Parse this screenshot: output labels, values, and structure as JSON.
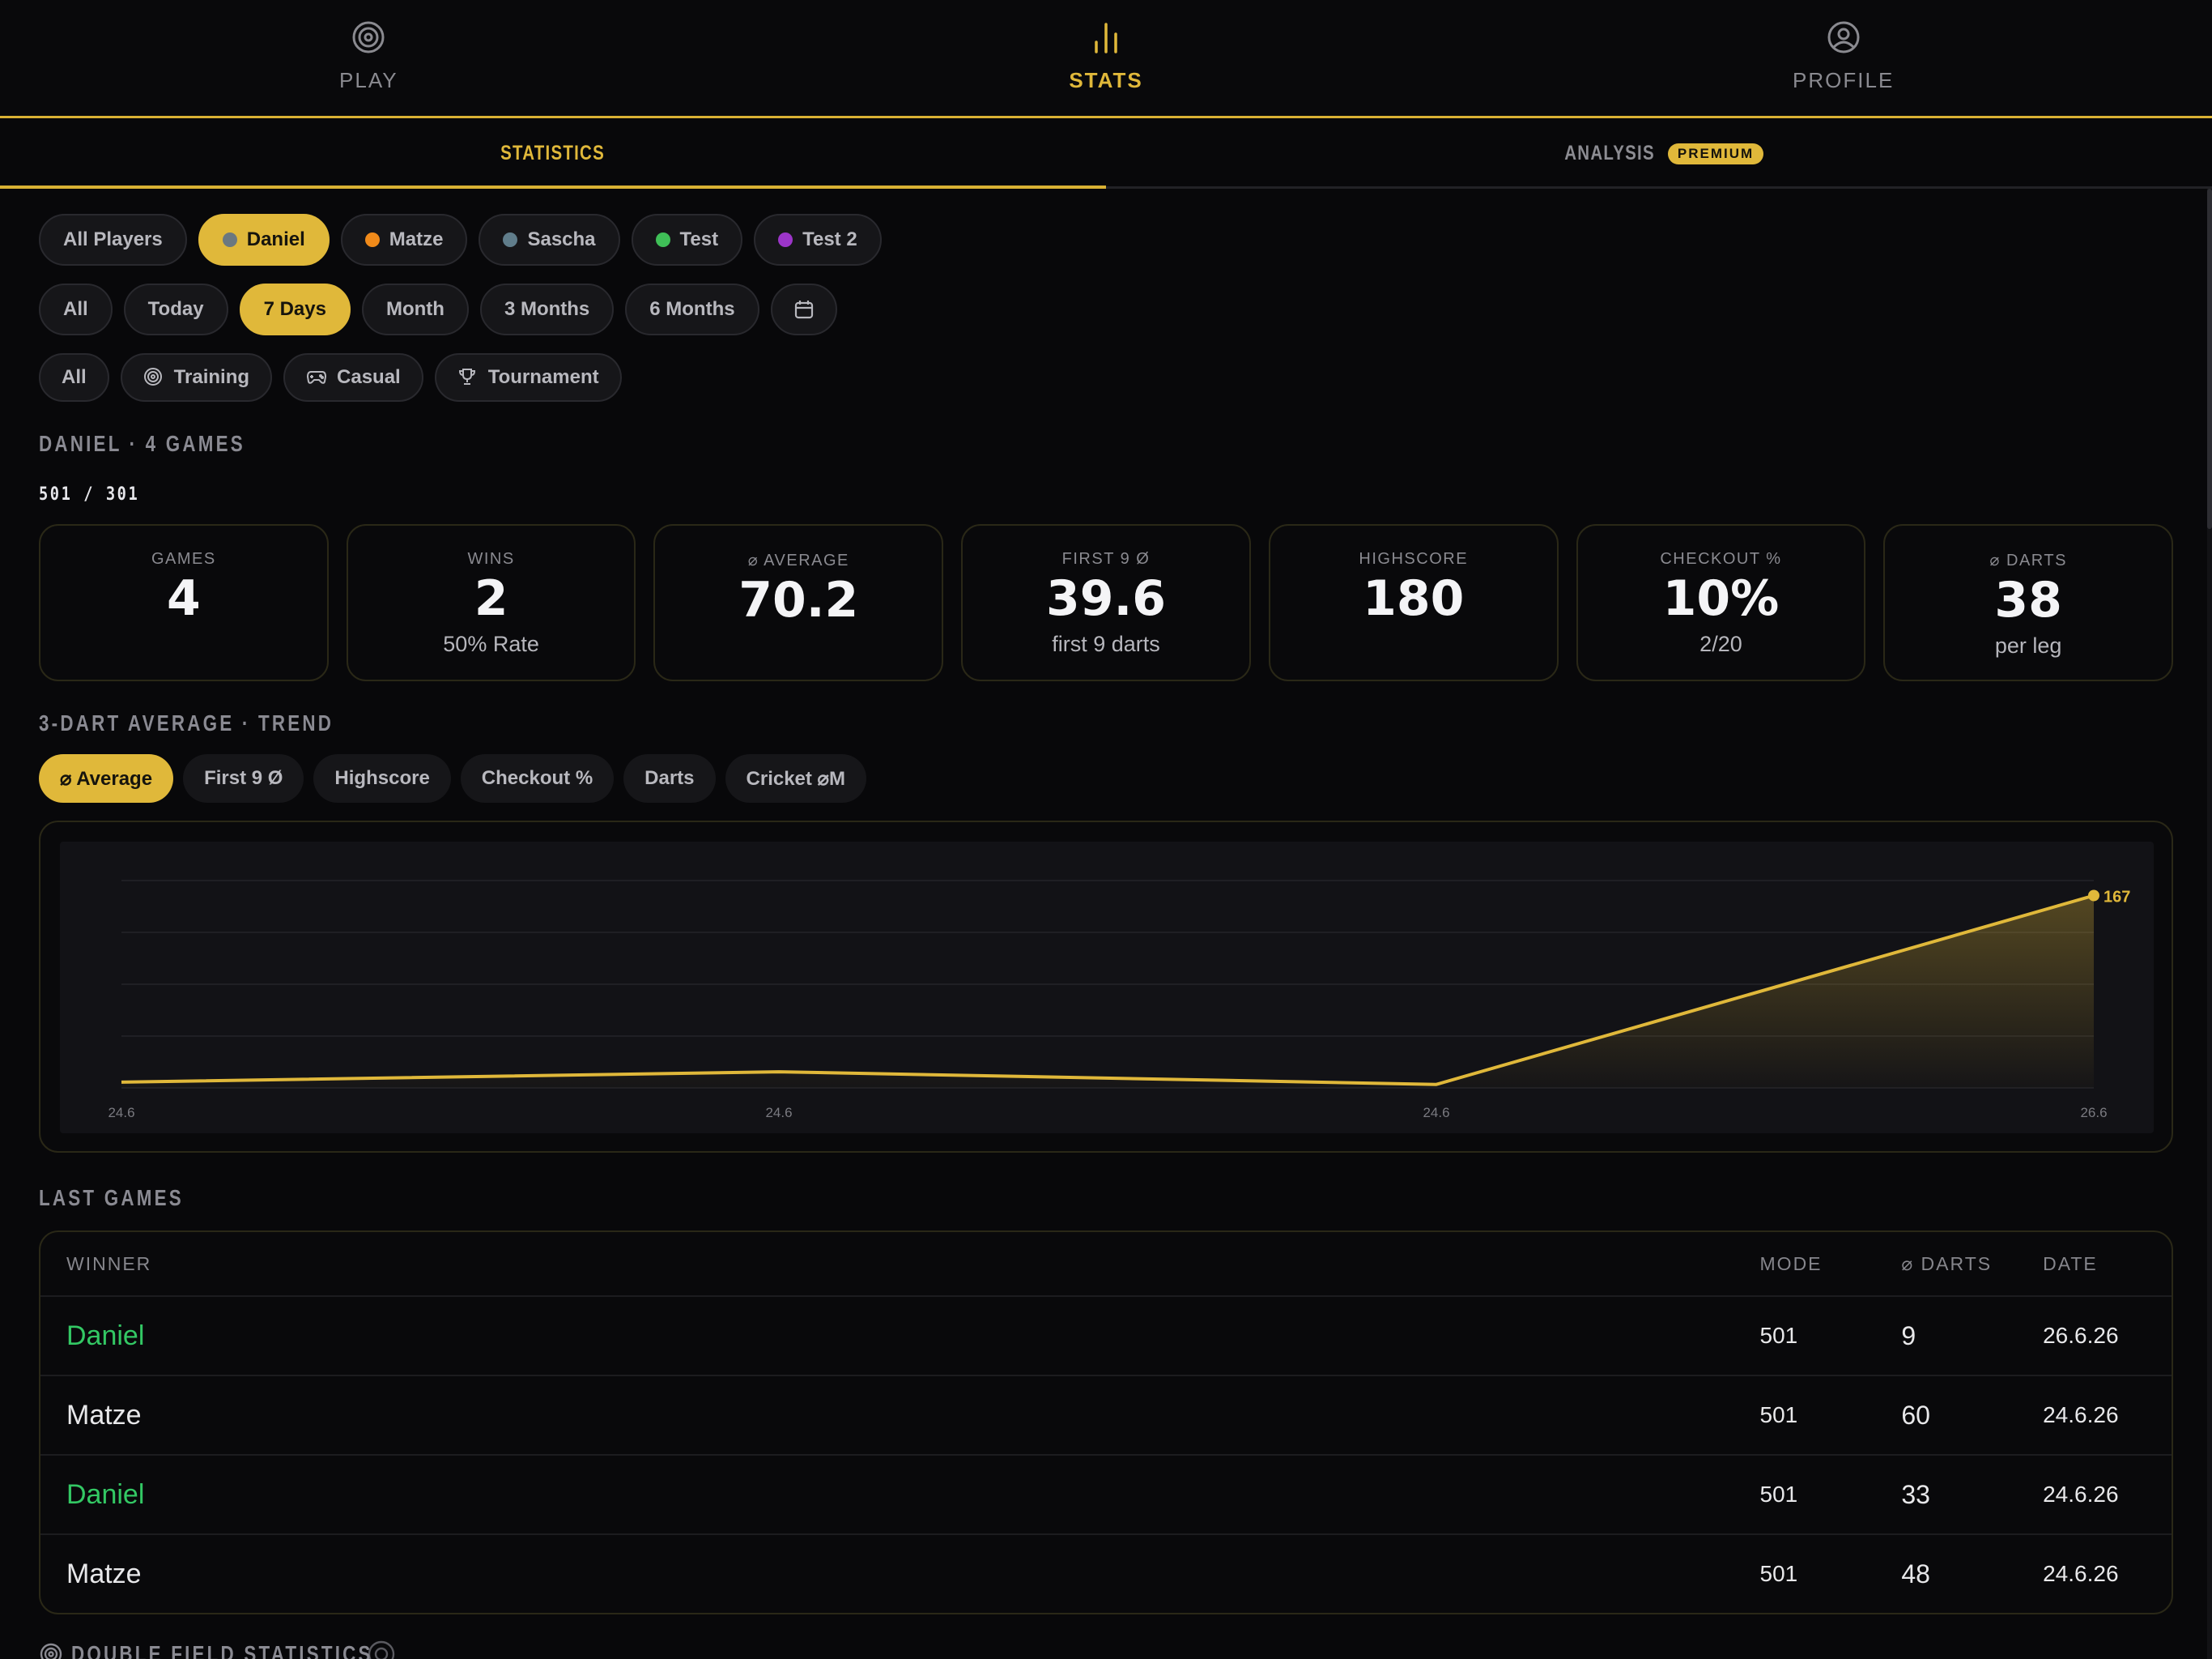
{
  "nav": {
    "items": [
      {
        "label": "PLAY",
        "icon": "target-icon",
        "active": false
      },
      {
        "label": "STATS",
        "icon": "bar-chart-icon",
        "active": true
      },
      {
        "label": "PROFILE",
        "icon": "user-circle-icon",
        "active": false
      }
    ]
  },
  "subtabs": {
    "statistics": "STATISTICS",
    "analysis": "ANALYSIS",
    "premium_badge": "PREMIUM"
  },
  "filters": {
    "players": [
      {
        "label": "All Players",
        "dot": null,
        "active": false
      },
      {
        "label": "Daniel",
        "dot": "#6b7880",
        "active": true
      },
      {
        "label": "Matze",
        "dot": "#f08a1a",
        "active": false
      },
      {
        "label": "Sascha",
        "dot": "#607d8b",
        "active": false
      },
      {
        "label": "Test",
        "dot": "#3fbf57",
        "active": false
      },
      {
        "label": "Test 2",
        "dot": "#9c35c9",
        "active": false
      }
    ],
    "periods": [
      {
        "label": "All",
        "active": false
      },
      {
        "label": "Today",
        "active": false
      },
      {
        "label": "7 Days",
        "active": true
      },
      {
        "label": "Month",
        "active": false
      },
      {
        "label": "3 Months",
        "active": false
      },
      {
        "label": "6 Months",
        "active": false
      }
    ],
    "calendar_icon": "calendar-icon",
    "game_types": [
      {
        "label": "All",
        "icon": null
      },
      {
        "label": "Training",
        "icon": "target-icon"
      },
      {
        "label": "Casual",
        "icon": "gamepad-icon"
      },
      {
        "label": "Tournament",
        "icon": "trophy-icon"
      }
    ]
  },
  "summary": {
    "title": "DANIEL · 4 GAMES",
    "mode": "501 / 301"
  },
  "stats": [
    {
      "key": "GAMES",
      "value": "4",
      "sub": ""
    },
    {
      "key": "WINS",
      "value": "2",
      "sub": "50% Rate"
    },
    {
      "key": "⌀ AVERAGE",
      "value": "70.2",
      "sub": ""
    },
    {
      "key": "FIRST 9 Ø",
      "value": "39.6",
      "sub": "first 9 darts"
    },
    {
      "key": "HIGHSCORE",
      "value": "180",
      "sub": ""
    },
    {
      "key": "CHECKOUT %",
      "value": "10%",
      "sub": "2/20"
    },
    {
      "key": "⌀ DARTS",
      "value": "38",
      "sub": "per leg"
    }
  ],
  "trend": {
    "title": "3-DART AVERAGE · TREND",
    "metrics": [
      {
        "label": "⌀ Average",
        "active": true
      },
      {
        "label": "First 9 Ø",
        "active": false
      },
      {
        "label": "Highscore",
        "active": false
      },
      {
        "label": "Checkout %",
        "active": false
      },
      {
        "label": "Darts",
        "active": false
      },
      {
        "label": "Cricket ⌀M",
        "active": false
      }
    ]
  },
  "chart_data": {
    "type": "area",
    "x": [
      "24.6",
      "24.6",
      "24.6",
      "26.6"
    ],
    "values": [
      5,
      14,
      3,
      167
    ],
    "last_label": "167",
    "ylim": [
      0,
      180
    ],
    "grid": true,
    "title": "",
    "xlabel": "",
    "ylabel": "",
    "colors": {
      "line": "#e0b83a",
      "bg": "#121216"
    }
  },
  "last_games": {
    "title": "LAST GAMES",
    "headers": {
      "winner": "WINNER",
      "mode": "MODE",
      "darts": "⌀ DARTS",
      "date": "DATE"
    },
    "rows": [
      {
        "winner": "Daniel",
        "highlight": true,
        "mode": "501",
        "darts": "9",
        "date": "26.6.26"
      },
      {
        "winner": "Matze",
        "highlight": false,
        "mode": "501",
        "darts": "60",
        "date": "24.6.26"
      },
      {
        "winner": "Daniel",
        "highlight": true,
        "mode": "501",
        "darts": "33",
        "date": "24.6.26"
      },
      {
        "winner": "Matze",
        "highlight": false,
        "mode": "501",
        "darts": "48",
        "date": "24.6.26"
      }
    ]
  },
  "double_field": {
    "title": "DOUBLE FIELD STATISTICS"
  },
  "colors": {
    "accent": "#e0b83a",
    "win": "#33c864",
    "background": "#08080a"
  }
}
